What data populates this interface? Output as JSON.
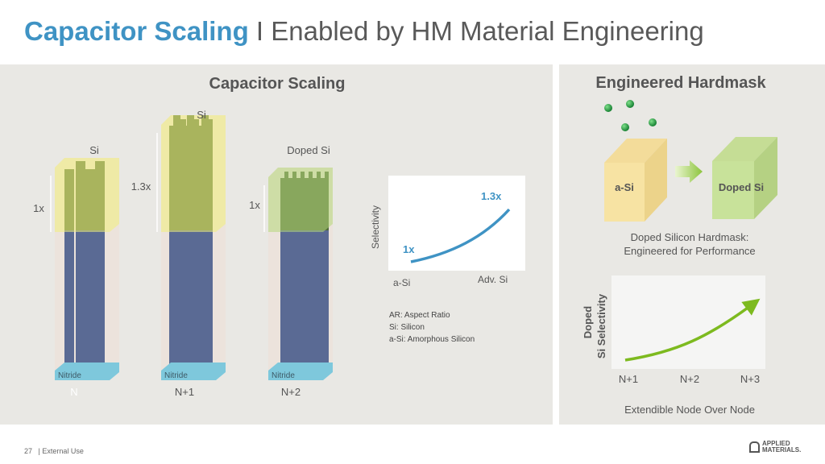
{
  "title": {
    "highlight": "Capacitor Scaling",
    "rest": " I Enabled by HM Material Engineering",
    "accent_color": "#3f93c4"
  },
  "left_panel": {
    "heading": "Capacitor Scaling",
    "structures": [
      {
        "top_label": "Si",
        "height_label": "1x",
        "base_label": "Nitride",
        "node_label": "N"
      },
      {
        "top_label": "Si",
        "height_label": "1.3x",
        "base_label": "Nitride",
        "node_label": "N+1"
      },
      {
        "top_label": "Doped Si",
        "height_label": "1x",
        "base_label": "Nitride",
        "node_label": "N+2"
      }
    ],
    "selectivity_chart": {
      "ylabel": "Selectivity",
      "start_label": "1x",
      "end_label": "1.3x",
      "x_start": "a-Si",
      "x_end": "Adv. Si",
      "line_color": "#3f93c4"
    },
    "legend": [
      "AR: Aspect Ratio",
      "Si: Silicon",
      "a-Si: Amorphous Silicon"
    ]
  },
  "right_panel": {
    "heading": "Engineered Hardmask",
    "box_from": "a-Si",
    "box_to": "Doped Si",
    "caption_line1": "Doped Silicon Hardmask:",
    "caption_line2": "Engineered for Performance",
    "chart": {
      "ylabel_line1": "Doped",
      "ylabel_line2": "Si Selectivity",
      "x_ticks": [
        "N+1",
        "N+2",
        "N+3"
      ],
      "xlabel": "Extendible Node Over Node",
      "line_color": "#7dba1f"
    }
  },
  "footer": {
    "page": "27",
    "label": "| External Use",
    "logo_line1": "APPLIED",
    "logo_line2": "MATERIALS."
  }
}
